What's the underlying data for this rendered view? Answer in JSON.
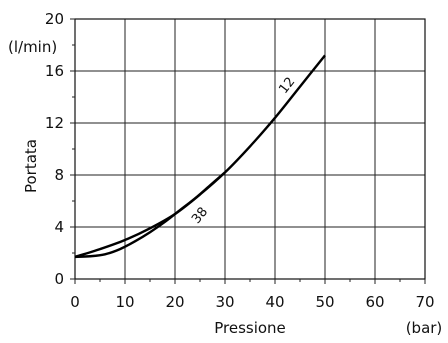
{
  "chart_data": {
    "type": "line",
    "title": "",
    "xlabel": "Pressione",
    "xunit": "(bar)",
    "ylabel": "Portata",
    "yunit": "(l/min)",
    "xlim": [
      0,
      70
    ],
    "ylim": [
      0,
      20
    ],
    "xticks": [
      "0",
      "10",
      "20",
      "30",
      "40",
      "50",
      "60",
      "70"
    ],
    "yticks": [
      "0",
      "4",
      "8",
      "12",
      "16",
      "20"
    ],
    "grid": true,
    "series": [
      {
        "name": "12",
        "x": [
          0,
          5,
          10,
          15,
          20,
          25,
          30,
          35,
          40,
          45,
          50
        ],
        "y": [
          1.7,
          2.3,
          3.0,
          3.9,
          5.0,
          6.5,
          8.2,
          10.2,
          12.4,
          14.8,
          17.2
        ]
      },
      {
        "name": "38",
        "x": [
          0,
          3,
          6,
          9,
          12,
          15,
          18,
          21,
          24,
          27,
          30
        ],
        "y": [
          1.7,
          1.75,
          1.9,
          2.3,
          2.9,
          3.6,
          4.4,
          5.3,
          6.2,
          7.2,
          8.2
        ]
      }
    ]
  }
}
